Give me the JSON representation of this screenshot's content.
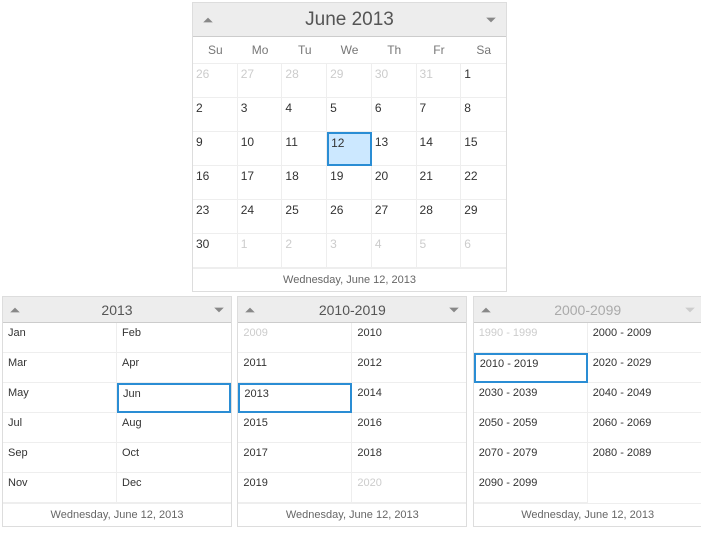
{
  "main": {
    "title": "June 2013",
    "dow": [
      "Su",
      "Mo",
      "Tu",
      "We",
      "Th",
      "Fr",
      "Sa"
    ],
    "days": [
      {
        "n": "26",
        "muted": true
      },
      {
        "n": "27",
        "muted": true
      },
      {
        "n": "28",
        "muted": true
      },
      {
        "n": "29",
        "muted": true
      },
      {
        "n": "30",
        "muted": true
      },
      {
        "n": "31",
        "muted": true
      },
      {
        "n": "1"
      },
      {
        "n": "2"
      },
      {
        "n": "3"
      },
      {
        "n": "4"
      },
      {
        "n": "5"
      },
      {
        "n": "6"
      },
      {
        "n": "7"
      },
      {
        "n": "8"
      },
      {
        "n": "9"
      },
      {
        "n": "10"
      },
      {
        "n": "11"
      },
      {
        "n": "12",
        "selected": true
      },
      {
        "n": "13"
      },
      {
        "n": "14"
      },
      {
        "n": "15"
      },
      {
        "n": "16"
      },
      {
        "n": "17"
      },
      {
        "n": "18"
      },
      {
        "n": "19"
      },
      {
        "n": "20"
      },
      {
        "n": "21"
      },
      {
        "n": "22"
      },
      {
        "n": "23"
      },
      {
        "n": "24"
      },
      {
        "n": "25"
      },
      {
        "n": "26"
      },
      {
        "n": "27"
      },
      {
        "n": "28"
      },
      {
        "n": "29"
      },
      {
        "n": "30"
      },
      {
        "n": "1",
        "muted": true
      },
      {
        "n": "2",
        "muted": true
      },
      {
        "n": "3",
        "muted": true
      },
      {
        "n": "4",
        "muted": true
      },
      {
        "n": "5",
        "muted": true
      },
      {
        "n": "6",
        "muted": true
      }
    ],
    "footer": "Wednesday, June 12, 2013"
  },
  "year": {
    "title": "2013",
    "cells": [
      {
        "t": "Jan"
      },
      {
        "t": "Feb"
      },
      {
        "t": "Mar"
      },
      {
        "t": "Apr"
      },
      {
        "t": "May"
      },
      {
        "t": "Jun",
        "selected": true
      },
      {
        "t": "Jul"
      },
      {
        "t": "Aug"
      },
      {
        "t": "Sep"
      },
      {
        "t": "Oct"
      },
      {
        "t": "Nov"
      },
      {
        "t": "Dec"
      }
    ],
    "footer": "Wednesday, June 12, 2013"
  },
  "decade": {
    "title": "2010-2019",
    "cells": [
      {
        "t": "2009",
        "muted": true
      },
      {
        "t": "2010"
      },
      {
        "t": "2011"
      },
      {
        "t": "2012"
      },
      {
        "t": "2013",
        "selected": true
      },
      {
        "t": "2014"
      },
      {
        "t": "2015"
      },
      {
        "t": "2016"
      },
      {
        "t": "2017"
      },
      {
        "t": "2018"
      },
      {
        "t": "2019"
      },
      {
        "t": "2020",
        "muted": true
      }
    ],
    "footer": "Wednesday, June 12, 2013"
  },
  "century": {
    "title": "2000-2099",
    "titleDisabled": true,
    "nextDisabled": true,
    "cells": [
      {
        "t": "1990 - 1999",
        "muted": true
      },
      {
        "t": "2000 - 2009"
      },
      {
        "t": "2010 - 2019",
        "selected": true
      },
      {
        "t": "2020 - 2029"
      },
      {
        "t": "2030 - 2039"
      },
      {
        "t": "2040 - 2049"
      },
      {
        "t": "2050 - 2059"
      },
      {
        "t": "2060 - 2069"
      },
      {
        "t": "2070 - 2079"
      },
      {
        "t": "2080 - 2089"
      },
      {
        "t": "2090 - 2099"
      }
    ],
    "footer": "Wednesday, June 12, 2013"
  }
}
